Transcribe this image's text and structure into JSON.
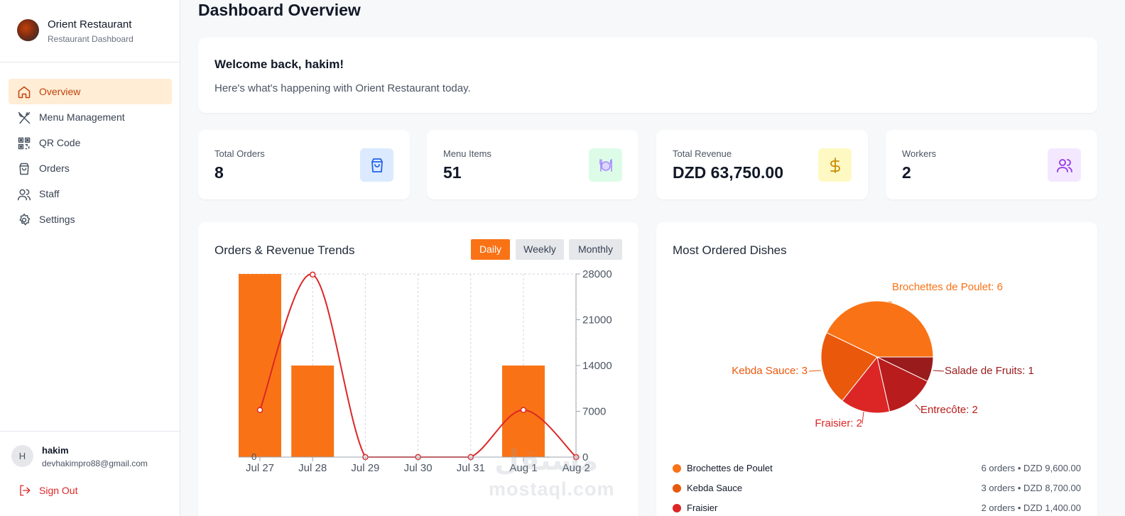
{
  "sidebar": {
    "brand_name": "Orient Restaurant",
    "brand_sub": "Restaurant Dashboard",
    "items": [
      {
        "label": "Overview",
        "icon": "home-icon",
        "active": true
      },
      {
        "label": "Menu Management",
        "icon": "utensils-icon"
      },
      {
        "label": "QR Code",
        "icon": "qr-code-icon"
      },
      {
        "label": "Orders",
        "icon": "shopping-bag-icon"
      },
      {
        "label": "Staff",
        "icon": "users-icon"
      },
      {
        "label": "Settings",
        "icon": "gear-icon"
      }
    ],
    "user": {
      "initial": "H",
      "name": "hakim",
      "email": "devhakimpro88@gmail.com"
    },
    "signout_label": "Sign Out"
  },
  "header": {
    "title": "Dashboard Overview"
  },
  "welcome": {
    "title": "Welcome back, hakim!",
    "subtitle": "Here's what's happening with Orient Restaurant today."
  },
  "stats": [
    {
      "label": "Total Orders",
      "value": "8",
      "icon": "shopping-bag-icon",
      "color": "#2563eb",
      "bg": "#dbeafe"
    },
    {
      "label": "Menu Items",
      "value": "51",
      "icon": "plate-icon",
      "color": "#a78bfa",
      "bg": "#dcfce7"
    },
    {
      "label": "Total Revenue",
      "value": "DZD 63,750.00",
      "icon": "dollar-icon",
      "color": "#ca8a04",
      "bg": "#fef9c3"
    },
    {
      "label": "Workers",
      "value": "2",
      "icon": "users-icon",
      "color": "#9333ea",
      "bg": "#f3e8ff"
    }
  ],
  "trends": {
    "title": "Orders & Revenue Trends",
    "tabs": [
      "Daily",
      "Weekly",
      "Monthly"
    ],
    "active_tab": "Daily"
  },
  "chart_data": [
    {
      "type": "bar",
      "title": "Orders & Revenue Trends",
      "categories": [
        "Jul 27",
        "Jul 28",
        "Jul 29",
        "Jul 30",
        "Jul 31",
        "Aug 1",
        "Aug 2"
      ],
      "series": [
        {
          "type": "bar",
          "values": [
            4,
            2,
            0,
            0,
            0,
            2,
            0
          ],
          "color": "#f97316"
        },
        {
          "type": "line",
          "values": [
            7200,
            27900,
            0,
            0,
            0,
            7200,
            0
          ],
          "color": "#dc2626"
        }
      ],
      "y_right_ticks": [
        0,
        7000,
        14000,
        21000,
        28000
      ],
      "y_right_lim": [
        0,
        28000
      ],
      "y_left_lim": [
        0,
        4
      ],
      "y_left_ticks_visible": [
        "0"
      ],
      "grid": true
    },
    {
      "type": "pie",
      "title": "Most Ordered Dishes",
      "labels": [
        "Brochettes de Poulet",
        "Kebda Sauce",
        "Fraisier",
        "Entrecôte",
        "Salade de Fruits"
      ],
      "values": [
        6,
        3,
        2,
        2,
        1
      ],
      "colors": [
        "#f97316",
        "#ea580c",
        "#dc2626",
        "#b91c1c",
        "#991b1b"
      ],
      "slice_labels": [
        "Brochettes de Poulet: 6",
        "Kebda Sauce: 3",
        "Fraisier: 2",
        "Entrecôte: 2",
        "Salade de Fruits: 1"
      ]
    }
  ],
  "dishes": {
    "title": "Most Ordered Dishes",
    "legend": [
      {
        "name": "Brochettes de Poulet",
        "detail": "6 orders • DZD 9,600.00",
        "color": "#f97316"
      },
      {
        "name": "Kebda Sauce",
        "detail": "3 orders • DZD 8,700.00",
        "color": "#ea580c"
      },
      {
        "name": "Fraisier",
        "detail": "2 orders • DZD 1,400.00",
        "color": "#dc2626"
      }
    ]
  },
  "watermark": {
    "arabic": "مستقل",
    "latin": "mostaql.com"
  }
}
